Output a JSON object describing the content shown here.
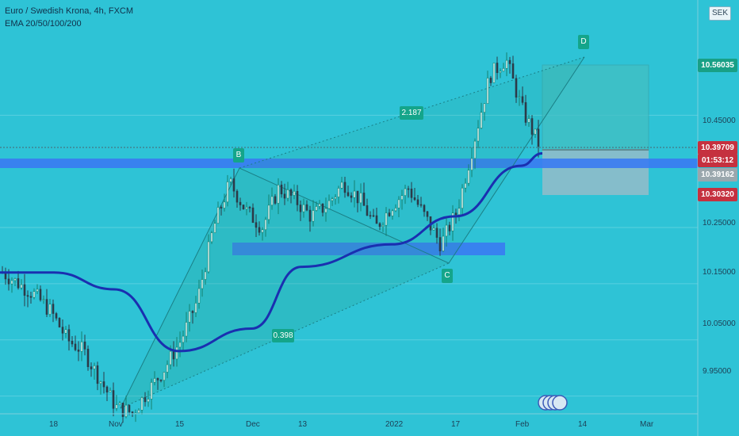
{
  "header": {
    "title": "Euro / Swedish Krona, 4h, FXCM",
    "indicator": "EMA 20/50/100/200",
    "currency": "SEK"
  },
  "price_tags": [
    {
      "value": "10.56035",
      "color": "#18a086"
    },
    {
      "value": "10.39709",
      "color": "#c5313f"
    },
    {
      "value": "01:53:12",
      "color": "#c5313f"
    },
    {
      "value": "10.39162",
      "color": "#9aa7ad"
    },
    {
      "value": "10.30320",
      "color": "#c5313f"
    }
  ],
  "pattern": {
    "points": [
      "B",
      "C",
      "D"
    ],
    "ratio_bd": "2.187",
    "ratio_xc": "0.398"
  },
  "colors": {
    "background": "#2ec3d6",
    "ema": "#1a2fb0",
    "zone": "#3a7bf2",
    "pattern_fill": "#2aa394",
    "profit_box": "#43bfc3",
    "stop_box": "#9bbcc8"
  },
  "chart_data": {
    "type": "line",
    "title": "Euro / Swedish Krona, 4h, FXCM",
    "y_axis": {
      "ticks": [
        "10.05000",
        "10.15000",
        "10.25000",
        "10.45000",
        "9.95000"
      ],
      "range": [
        9.9,
        10.64
      ]
    },
    "x_axis": {
      "ticks": [
        "18",
        "Nov",
        "15",
        "Dec",
        "13",
        "2022",
        "17",
        "Feb",
        "14",
        "Mar"
      ]
    },
    "series": [
      {
        "name": "EMA 20/50/100/200",
        "x": [
          "18",
          "Nov",
          "15",
          "Dec",
          "13",
          "2022",
          "17",
          "Feb"
        ],
        "values": [
          10.17,
          10.14,
          10.03,
          10.07,
          10.18,
          10.22,
          10.27,
          10.36
        ]
      }
    ],
    "candles_close": [
      10.17,
      10.15,
      10.13,
      10.1,
      10.05,
      10.03,
      9.98,
      9.93,
      9.92,
      9.96,
      10.0,
      10.05,
      10.12,
      10.25,
      10.33,
      10.28,
      10.25,
      10.32,
      10.3,
      10.27,
      10.29,
      10.33,
      10.3,
      10.25,
      10.29,
      10.32,
      10.27,
      10.22,
      10.28,
      10.4,
      10.52,
      10.55,
      10.46,
      10.4
    ],
    "zones": [
      {
        "low": 10.378,
        "high": 10.392
      },
      {
        "low": 10.207,
        "high": 10.222
      }
    ],
    "markers": [
      {
        "label": "B",
        "x": "Dec",
        "price": 10.38
      },
      {
        "label": "C",
        "x": "17",
        "price": 10.16
      },
      {
        "label": "D",
        "x": "14",
        "price": 10.58
      }
    ],
    "annotations": [
      "2.187",
      "0.398"
    ]
  }
}
